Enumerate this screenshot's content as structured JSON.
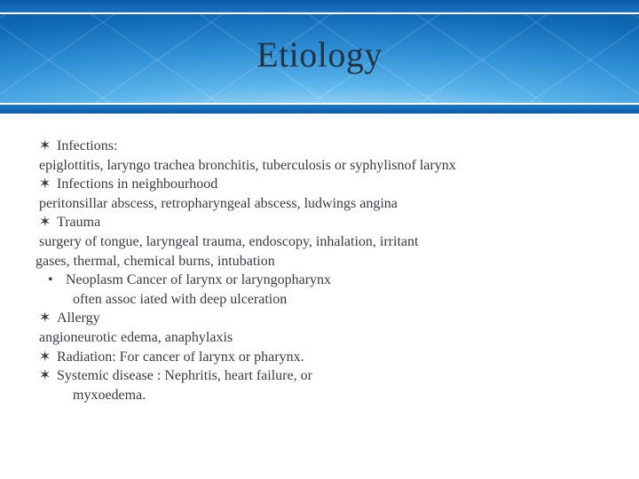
{
  "title": "Etiology",
  "colors": {
    "title_text": "#223344",
    "body_text": "#3a3a44",
    "band_dark": "#0a5aa8",
    "band_light": "#bfe4fb",
    "background": "#ffffff"
  },
  "typography": {
    "title_fontsize": 40,
    "body_fontsize": 16,
    "font_family": "Georgia"
  },
  "bullets": {
    "star": "✶",
    "dot": "•"
  },
  "lines": [
    {
      "type": "star",
      "text": "Infections:"
    },
    {
      "type": "sub",
      "text": "epiglottitis, laryngo trachea bronchitis, tuberculosis or syphylisnof larynx"
    },
    {
      "type": "star",
      "text": "Infections in neighbourhood"
    },
    {
      "type": "sub",
      "text": "peritonsillar abscess, retropharyngeal abscess, ludwings angina"
    },
    {
      "type": "star",
      "text": "Trauma"
    },
    {
      "type": "sub",
      "text": "surgery of tongue, laryngeal trauma, endoscopy, inhalation, irritant"
    },
    {
      "type": "wrap",
      "text": "gases, thermal, chemical burns, intubation"
    },
    {
      "type": "dot2",
      "text": "Neoplasm Cancer of larynx or laryngopharynx"
    },
    {
      "type": "sub2",
      "text": "often assoc iated with deep ulceration"
    },
    {
      "type": "star",
      "text": "Allergy"
    },
    {
      "type": "sub",
      "text": "angioneurotic edema, anaphylaxis"
    },
    {
      "type": "star",
      "text": "Radiation: For cancer of larynx or pharynx."
    },
    {
      "type": "star",
      "text": "Systemic disease : Nephritis, heart failure, or"
    },
    {
      "type": "sub2",
      "text": "myxoedema."
    }
  ]
}
